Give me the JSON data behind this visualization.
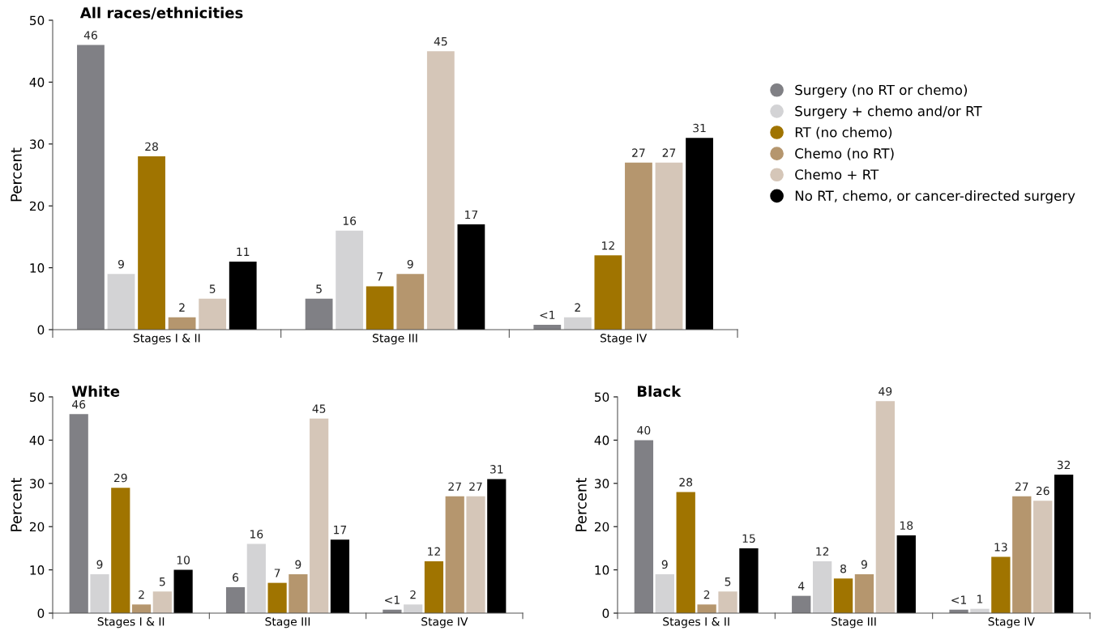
{
  "chart_data": [
    {
      "type": "bar",
      "title": "All races/ethnicities",
      "ylabel": "Percent",
      "categories": [
        "Stages I & II",
        "Stage III",
        "Stage IV"
      ],
      "ylim": [
        0,
        50
      ],
      "yticks": [
        0,
        10,
        20,
        30,
        40,
        50
      ],
      "grid": false,
      "legend": "right",
      "marker": "circle",
      "series": [
        {
          "name": "Surgery (no RT or chemo)",
          "color": "#808085",
          "values": [
            46,
            5,
            0.8
          ],
          "value_labels": [
            "46",
            "5",
            "<1"
          ]
        },
        {
          "name": "Surgery + chemo and/or RT",
          "color": "#d3d3d5",
          "values": [
            9,
            16,
            2
          ],
          "value_labels": [
            "9",
            "16",
            "2"
          ]
        },
        {
          "name": "RT (no chemo)",
          "color": "#a07400",
          "values": [
            28,
            7,
            12
          ],
          "value_labels": [
            "28",
            "7",
            "12"
          ]
        },
        {
          "name": "Chemo (no RT)",
          "color": "#b5966e",
          "values": [
            2,
            9,
            27
          ],
          "value_labels": [
            "2",
            "9",
            "27"
          ]
        },
        {
          "name": "Chemo + RT",
          "color": "#d5c6b8",
          "values": [
            5,
            45,
            27
          ],
          "value_labels": [
            "5",
            "45",
            "27"
          ]
        },
        {
          "name": "No RT, chemo, or cancer-directed surgery",
          "color": "#000000",
          "values": [
            11,
            17,
            31
          ],
          "value_labels": [
            "11",
            "17",
            "31"
          ]
        }
      ]
    },
    {
      "type": "bar",
      "title": "White",
      "ylabel": "Percent",
      "categories": [
        "Stages I & II",
        "Stage III",
        "Stage IV"
      ],
      "ylim": [
        0,
        50
      ],
      "yticks": [
        0,
        10,
        20,
        30,
        40,
        50
      ],
      "grid": false,
      "series": [
        {
          "color": "#808085",
          "values": [
            46,
            6,
            0.8
          ],
          "value_labels": [
            "46",
            "6",
            "<1"
          ]
        },
        {
          "color": "#d3d3d5",
          "values": [
            9,
            16,
            2
          ],
          "value_labels": [
            "9",
            "16",
            "2"
          ]
        },
        {
          "color": "#a07400",
          "values": [
            29,
            7,
            12
          ],
          "value_labels": [
            "29",
            "7",
            "12"
          ]
        },
        {
          "color": "#b5966e",
          "values": [
            2,
            9,
            27
          ],
          "value_labels": [
            "2",
            "9",
            "27"
          ]
        },
        {
          "color": "#d5c6b8",
          "values": [
            5,
            45,
            27
          ],
          "value_labels": [
            "5",
            "45",
            "27"
          ]
        },
        {
          "color": "#000000",
          "values": [
            10,
            17,
            31
          ],
          "value_labels": [
            "10",
            "17",
            "31"
          ]
        }
      ]
    },
    {
      "type": "bar",
      "title": "Black",
      "ylabel": "Percent",
      "categories": [
        "Stages I & II",
        "Stage III",
        "Stage IV"
      ],
      "ylim": [
        0,
        50
      ],
      "yticks": [
        0,
        10,
        20,
        30,
        40,
        50
      ],
      "grid": false,
      "series": [
        {
          "color": "#808085",
          "values": [
            40,
            4,
            0.8
          ],
          "value_labels": [
            "40",
            "4",
            "<1"
          ]
        },
        {
          "color": "#d3d3d5",
          "values": [
            9,
            12,
            1
          ],
          "value_labels": [
            "9",
            "12",
            "1"
          ]
        },
        {
          "color": "#a07400",
          "values": [
            28,
            8,
            13
          ],
          "value_labels": [
            "28",
            "8",
            "13"
          ]
        },
        {
          "color": "#b5966e",
          "values": [
            2,
            9,
            27
          ],
          "value_labels": [
            "2",
            "9",
            "27"
          ]
        },
        {
          "color": "#d5c6b8",
          "values": [
            5,
            49,
            26
          ],
          "value_labels": [
            "5",
            "49",
            "26"
          ]
        },
        {
          "color": "#000000",
          "values": [
            15,
            18,
            32
          ],
          "value_labels": [
            "15",
            "18",
            "32"
          ]
        }
      ]
    }
  ]
}
